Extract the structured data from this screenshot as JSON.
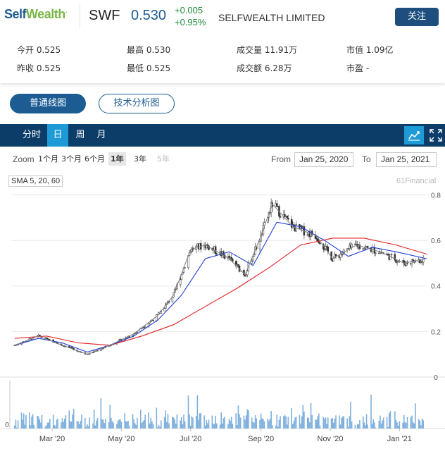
{
  "header": {
    "logo": {
      "part1": "Self",
      "part2": "Wealth",
      "mark": "."
    },
    "ticker": "SWF",
    "price": "0.530",
    "change_abs": "+0.005",
    "change_pct": "+0.95%",
    "company": "SELFWEALTH LIMITED",
    "follow_label": "关注",
    "colors": {
      "brand_blue": "#1d5c93",
      "brand_green": "#7ab648",
      "up": "#1f8a3a"
    }
  },
  "stats": {
    "open": "今开 0.525",
    "high": "最高 0.530",
    "volume": "成交量 11.91万",
    "market_cap": "市值 1.09亿",
    "prev_close": "昨收 0.525",
    "low": "最低 0.525",
    "turnover": "成交额 6.28万",
    "pe": "市盈 -"
  },
  "chart_tabs": {
    "line": "普通线图",
    "technical": "技术分析图"
  },
  "periods": {
    "intraday": "分时",
    "day": "日",
    "week": "周",
    "month": "月",
    "active": "日",
    "icons": [
      "line-chart-icon",
      "fullscreen-icon"
    ]
  },
  "zoom": {
    "label": "Zoom",
    "options": [
      "1个月",
      "3个月",
      "6个月",
      "1年",
      "3年",
      "5年"
    ],
    "active": "1年",
    "from_label": "From",
    "from_value": "Jan 25, 2020",
    "to_label": "To",
    "to_value": "Jan 25, 2021"
  },
  "indicator_label": "SMA 5, 20, 60",
  "credit": "61Financial",
  "chart_data": {
    "type": "line",
    "title": "",
    "x_tick_labels": [
      "Mar '20",
      "May '20",
      "Jul '20",
      "Sep '20",
      "Nov '20",
      "Jan '21"
    ],
    "y_tick_labels": [
      "0",
      "0.2",
      "0.4",
      "0.6",
      "0.8"
    ],
    "ylim": [
      0,
      0.82
    ],
    "volume_axis_label": "0",
    "series": [
      {
        "name": "SMA 60",
        "color": "#e02020",
        "x": [
          "2020-01-28",
          "2020-02-25",
          "2020-03-24",
          "2020-04-21",
          "2020-05-19",
          "2020-06-16",
          "2020-07-14",
          "2020-08-11",
          "2020-09-08",
          "2020-10-06",
          "2020-11-03",
          "2020-12-01",
          "2020-12-29",
          "2021-01-25"
        ],
        "y": [
          0.17,
          0.18,
          0.15,
          0.14,
          0.18,
          0.23,
          0.31,
          0.39,
          0.48,
          0.58,
          0.61,
          0.61,
          0.58,
          0.54
        ]
      },
      {
        "name": "SMA 20",
        "color": "#1f3fd6",
        "x": [
          "2020-01-28",
          "2020-02-18",
          "2020-03-10",
          "2020-04-01",
          "2020-04-21",
          "2020-05-12",
          "2020-06-02",
          "2020-06-23",
          "2020-07-14",
          "2020-08-04",
          "2020-08-25",
          "2020-09-15",
          "2020-10-06",
          "2020-10-27",
          "2020-11-17",
          "2020-12-08",
          "2020-12-29",
          "2021-01-25"
        ],
        "y": [
          0.14,
          0.17,
          0.15,
          0.11,
          0.14,
          0.18,
          0.25,
          0.36,
          0.52,
          0.55,
          0.49,
          0.68,
          0.66,
          0.6,
          0.53,
          0.57,
          0.55,
          0.52
        ]
      },
      {
        "name": "SMA 5",
        "color": "#888888",
        "x": [
          "2020-01-28",
          "2020-02-18",
          "2020-03-10",
          "2020-04-01",
          "2020-04-21",
          "2020-05-12",
          "2020-06-02",
          "2020-06-16",
          "2020-07-01",
          "2020-07-14",
          "2020-08-04",
          "2020-08-18",
          "2020-09-01",
          "2020-09-11",
          "2020-09-29",
          "2020-10-20",
          "2020-11-03",
          "2020-11-24",
          "2020-12-15",
          "2021-01-05",
          "2021-01-25"
        ],
        "y": [
          0.14,
          0.18,
          0.14,
          0.1,
          0.14,
          0.19,
          0.27,
          0.36,
          0.56,
          0.58,
          0.52,
          0.45,
          0.62,
          0.76,
          0.66,
          0.62,
          0.52,
          0.58,
          0.55,
          0.5,
          0.52
        ]
      }
    ]
  }
}
